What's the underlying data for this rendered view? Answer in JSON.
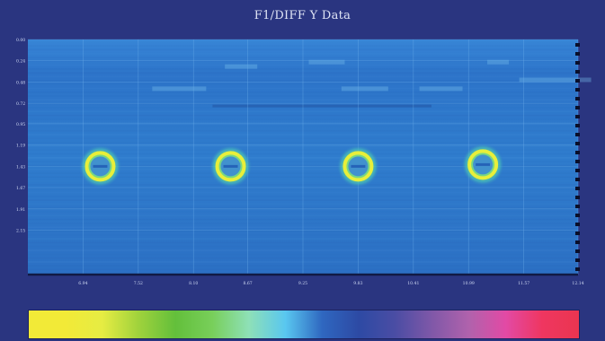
{
  "title": "F1/DIFF Y Data",
  "chart_data": {
    "type": "heatmap",
    "title": "F1/DIFF Y Data",
    "xlabel": "",
    "ylabel": "",
    "x_ticks": [
      "6.94",
      "7.52",
      "8.10",
      "8.67",
      "9.25",
      "9.83",
      "10.41",
      "10.99",
      "11.57",
      "12.14"
    ],
    "y_ticks": [
      "0.00",
      "0.24",
      "0.48",
      "0.72",
      "0.95",
      "1.19",
      "1.43",
      "1.67",
      "1.91",
      "2.15"
    ],
    "xlim": [
      6.36,
      12.14
    ],
    "ylim": [
      0.0,
      2.65
    ],
    "features": [
      {
        "x": 7.12,
        "y": 1.43
      },
      {
        "x": 8.49,
        "y": 1.43
      },
      {
        "x": 9.83,
        "y": 1.43
      },
      {
        "x": 11.14,
        "y": 1.41
      }
    ],
    "colors": {
      "background": "#2a3580",
      "field": "#2d74c9",
      "ring": "#e8ef3a"
    },
    "colorbar": [
      "#f2ea37",
      "#f2ea37",
      "#e6ec43",
      "#9fd23c",
      "#63bf3b",
      "#78cf5a",
      "#8ee0b7",
      "#59c7f0",
      "#2f67c0",
      "#2d4aa4",
      "#4b4da4",
      "#8058a8",
      "#b062ac",
      "#e24aa5",
      "#ef3660",
      "#ea3550"
    ],
    "grid": true
  }
}
